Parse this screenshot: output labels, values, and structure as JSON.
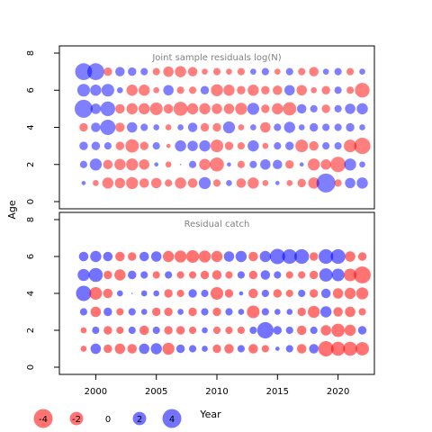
{
  "chart_data": {
    "type": "scatter",
    "encoding": "bubble",
    "shared_ylabel": "Age",
    "shared_xlabel": "Year",
    "xlim": [
      1997,
      2023
    ],
    "ylim": [
      0,
      8
    ],
    "x_ticks": [
      2000,
      2005,
      2010,
      2015,
      2020
    ],
    "y_ticks": [
      0,
      2,
      4,
      6,
      8
    ],
    "colors": {
      "negative": "#ff0000",
      "positive": "#0000ff",
      "frame": "#000000",
      "title": "#808080"
    },
    "years": [
      1999,
      2000,
      2001,
      2002,
      2003,
      2004,
      2005,
      2006,
      2007,
      2008,
      2009,
      2010,
      2011,
      2012,
      2013,
      2014,
      2015,
      2016,
      2017,
      2018,
      2019,
      2020,
      2021,
      2022
    ],
    "panels": [
      {
        "title": "Joint sample residuals log(N)",
        "fill_opacity": 0.5,
        "ages": [
          1,
          2,
          3,
          4,
          5,
          6,
          7
        ],
        "residuals": [
          [
            0.2,
            -0.4,
            -1.4,
            -1.2,
            -1.6,
            -1.0,
            -1.2,
            -0.6,
            -1.4,
            -1.0,
            1.6,
            -0.6,
            0.4,
            -1.0,
            -1.4,
            -0.4,
            0.2,
            -0.4,
            -0.8,
            -1.4,
            4.0,
            -0.6,
            1.2,
            1.4
          ],
          [
            0.6,
            1.6,
            -1.0,
            -1.4,
            -1.6,
            -1.2,
            0.2,
            -0.4,
            0.0,
            0.6,
            -1.4,
            -2.2,
            0.2,
            -0.6,
            0.6,
            1.2,
            1.0,
            -0.8,
            0.2,
            -1.6,
            -1.2,
            -2.6,
            1.6,
            0.4
          ],
          [
            0.8,
            0.8,
            0.6,
            -0.8,
            -2.0,
            -0.8,
            0.6,
            -0.2,
            1.4,
            1.2,
            1.4,
            -1.8,
            -0.8,
            -0.6,
            1.4,
            -0.4,
            0.6,
            0.8,
            -1.8,
            -1.0,
            0.6,
            0.6,
            -1.8,
            -3.0
          ],
          [
            -0.8,
            1.0,
            2.6,
            -1.0,
            1.2,
            0.6,
            0.4,
            -0.4,
            0.4,
            1.0,
            -0.8,
            -0.8,
            1.6,
            -0.4,
            0.4,
            -1.2,
            0.6,
            1.4,
            0.4,
            0.8,
            0.6,
            0.6,
            0.8,
            0.4
          ],
          [
            3.6,
            1.2,
            2.4,
            -1.0,
            -1.4,
            -1.4,
            -1.8,
            -1.0,
            -2.2,
            -1.4,
            -1.4,
            -1.2,
            -1.2,
            -1.6,
            1.6,
            -0.8,
            -1.4,
            -2.0,
            1.0,
            0.6,
            -0.8,
            0.6,
            1.2,
            1.4
          ],
          [
            1.8,
            1.4,
            1.8,
            0.4,
            -1.4,
            -1.4,
            -0.4,
            1.2,
            -0.6,
            -0.6,
            0.8,
            -1.6,
            -1.4,
            -0.8,
            -1.4,
            -0.8,
            -1.0,
            1.2,
            -1.2,
            -0.4,
            -0.8,
            0.6,
            -0.6,
            -2.4
          ],
          [
            3.2,
            3.2,
            -0.8,
            1.0,
            0.8,
            0.6,
            -0.6,
            -1.2,
            -1.4,
            -1.0,
            -0.4,
            -0.6,
            -0.4,
            -0.6,
            0.4,
            0.6,
            -0.4,
            0.6,
            -0.6,
            -1.0,
            0.4,
            0.6,
            -0.6,
            0.4
          ]
        ]
      },
      {
        "title": "Residual catch",
        "fill_opacity": 0.55,
        "ages": [
          1,
          2,
          3,
          4,
          5,
          6
        ],
        "residuals": [
          [
            -0.4,
            1.2,
            -0.8,
            -1.2,
            -1.0,
            1.2,
            1.4,
            -1.6,
            0.8,
            0.6,
            0.4,
            -0.8,
            -1.0,
            0.6,
            -1.0,
            -0.6,
            0.2,
            0.6,
            -1.0,
            1.0,
            -2.6,
            -2.2,
            -2.2,
            -2.0
          ],
          [
            -0.4,
            0.6,
            -0.8,
            -0.6,
            0.6,
            -1.0,
            0.6,
            -0.8,
            -0.8,
            -0.6,
            0.4,
            -0.6,
            -0.6,
            -0.6,
            0.6,
            3.0,
            0.8,
            0.6,
            -1.0,
            0.6,
            -1.2,
            -2.0,
            -1.4,
            0.8
          ],
          [
            0.6,
            -1.2,
            0.8,
            -0.6,
            0.6,
            0.4,
            -0.8,
            -0.8,
            0.4,
            -0.8,
            0.6,
            -0.8,
            0.6,
            0.4,
            -1.8,
            0.6,
            0.4,
            0.4,
            -0.8,
            -1.6,
            1.4,
            -1.0,
            -1.2,
            -0.6
          ],
          [
            2.6,
            -1.8,
            -1.0,
            0.4,
            0.0,
            0.4,
            0.4,
            -0.8,
            -0.6,
            0.8,
            0.6,
            -1.8,
            -0.8,
            0.2,
            -1.0,
            0.6,
            -0.8,
            -0.6,
            0.6,
            -0.8,
            1.0,
            -1.2,
            -1.4,
            -1.6
          ],
          [
            1.6,
            2.2,
            -0.8,
            -1.4,
            0.8,
            0.6,
            -0.6,
            0.6,
            -0.6,
            -0.6,
            -0.8,
            -1.0,
            -0.6,
            0.6,
            -0.8,
            1.0,
            0.6,
            -0.6,
            -0.6,
            -0.8,
            2.0,
            1.8,
            -1.8,
            -3.2
          ],
          [
            1.0,
            1.4,
            1.0,
            -1.0,
            -0.8,
            1.0,
            1.2,
            -1.4,
            -1.6,
            -1.8,
            -1.6,
            -1.4,
            1.2,
            1.4,
            -1.0,
            1.4,
            2.6,
            2.4,
            2.4,
            -0.8,
            2.4,
            2.4,
            -1.2,
            -0.8
          ]
        ]
      }
    ],
    "legend": {
      "values": [
        -4,
        -2,
        0,
        2,
        4
      ],
      "labels": [
        "-4",
        "-2",
        "0",
        "2",
        "4"
      ]
    }
  }
}
